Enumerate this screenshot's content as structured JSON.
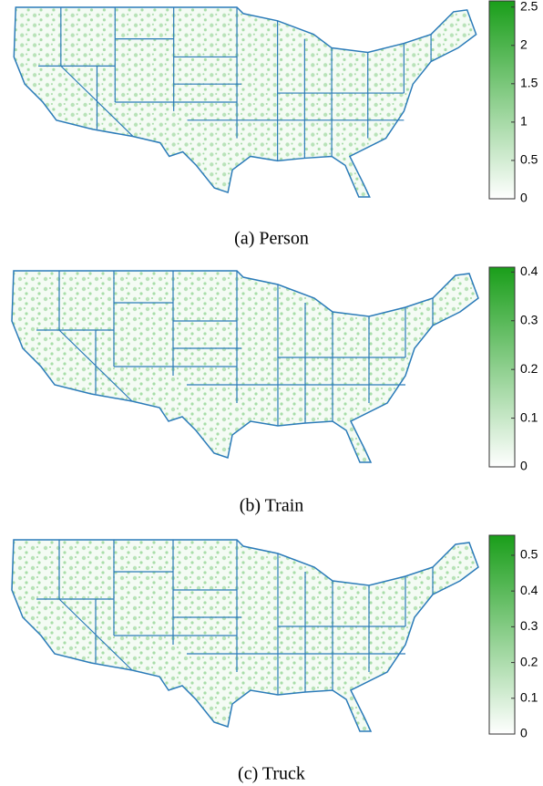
{
  "chart_data": [
    {
      "type": "heatmap-map",
      "caption": "(a) Person",
      "colorbar": {
        "lim": [
          0,
          2.58
        ],
        "ticks": [
          0,
          0.5,
          1,
          1.5,
          2,
          2.5
        ],
        "color": "#1a9e1a"
      }
    },
    {
      "type": "heatmap-map",
      "caption": "(b) Train",
      "colorbar": {
        "lim": [
          0,
          0.41
        ],
        "ticks": [
          0,
          0.1,
          0.2,
          0.3,
          0.4
        ],
        "color": "#1a9e1a"
      }
    },
    {
      "type": "heatmap-map",
      "caption": "(c) Truck",
      "colorbar": {
        "lim": [
          0,
          0.556
        ],
        "ticks": [
          0,
          0.1,
          0.2,
          0.3,
          0.4,
          0.5
        ],
        "color": "#1a9e1a"
      }
    }
  ]
}
